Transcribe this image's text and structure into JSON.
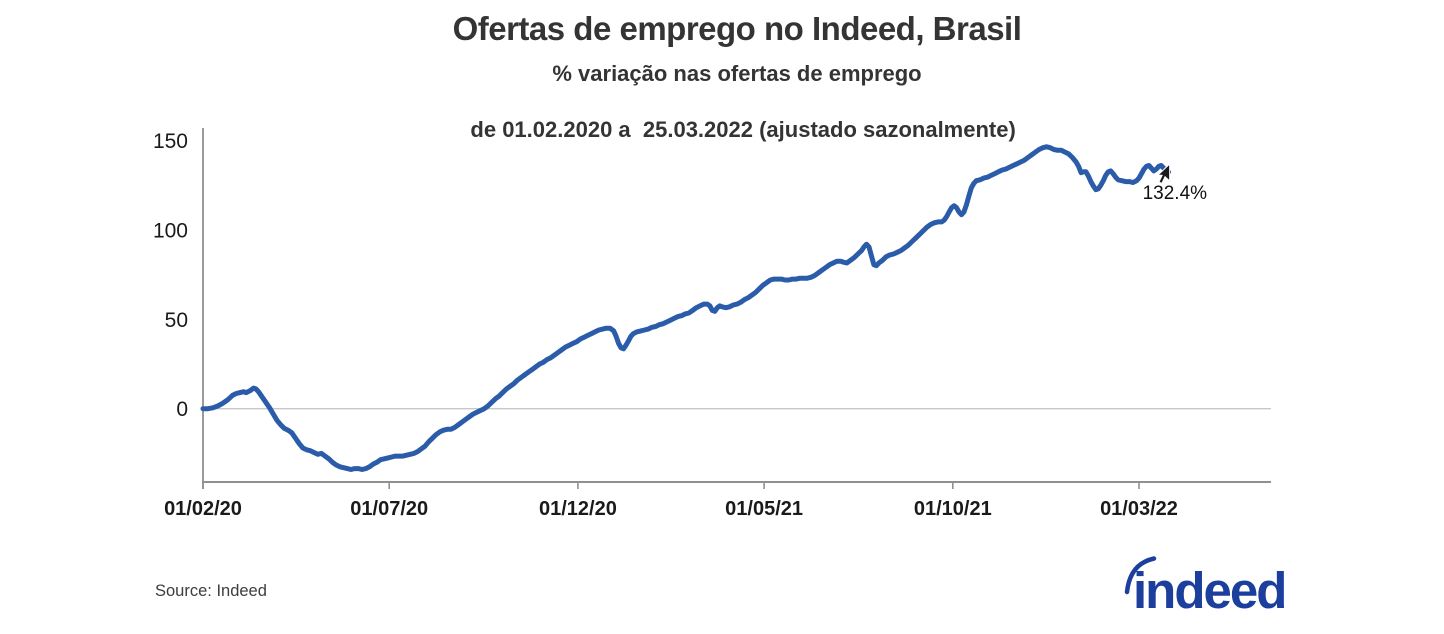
{
  "chart_data": {
    "type": "line",
    "title": "Ofertas de emprego no Indeed, Brasil",
    "subtitle_line1": "% variação nas ofertas de emprego",
    "subtitle_line2": "de 01.02.2020 a  25.03.2022 (ajustado sazonalmente)",
    "xlabel": "",
    "ylabel": "% variação nas ofertas de emprego",
    "x_unit": "days since 01/02/2020",
    "xlim": [
      0,
      866
    ],
    "ylim": [
      -41,
      157
    ],
    "x_ticks": [
      {
        "day": 0,
        "label": "01/02/20"
      },
      {
        "day": 151,
        "label": "01/07/20"
      },
      {
        "day": 304,
        "label": "01/12/20"
      },
      {
        "day": 455,
        "label": "01/05/21"
      },
      {
        "day": 608,
        "label": "01/10/21"
      },
      {
        "day": 759,
        "label": "01/03/22"
      }
    ],
    "y_ticks": [
      0,
      50,
      100,
      150
    ],
    "gridlines": "zero-line-only",
    "legend": "none",
    "colors": {
      "line": "#2b5ca9",
      "axis": "#909090",
      "gridline": "#c8c8c8",
      "text": "#1a1a1a"
    },
    "date_range": {
      "start": "01.02.2020",
      "end": "25.03.2022"
    },
    "annotation": {
      "label": "132.4%",
      "day": 783,
      "value": 132.4
    },
    "series": [
      {
        "name": "% variação nas ofertas de emprego (ajustado sazonalmente)",
        "color": "#2b5ca9",
        "points": [
          [
            0,
            0
          ],
          [
            4,
            0
          ],
          [
            8,
            0.5
          ],
          [
            12,
            1.5
          ],
          [
            16,
            3
          ],
          [
            20,
            5
          ],
          [
            24,
            7.5
          ],
          [
            27,
            8.5
          ],
          [
            30,
            9
          ],
          [
            33,
            9.5
          ],
          [
            35,
            9
          ],
          [
            38,
            10
          ],
          [
            41,
            11.5
          ],
          [
            43,
            11
          ],
          [
            45,
            9.5
          ],
          [
            48,
            6.5
          ],
          [
            51,
            3.5
          ],
          [
            54,
            0.5
          ],
          [
            57,
            -3
          ],
          [
            60,
            -6.5
          ],
          [
            63,
            -9
          ],
          [
            66,
            -11
          ],
          [
            69,
            -12
          ],
          [
            72,
            -13.5
          ],
          [
            75,
            -16.5
          ],
          [
            78,
            -19.5
          ],
          [
            81,
            -22
          ],
          [
            84,
            -23
          ],
          [
            87,
            -23.5
          ],
          [
            90,
            -24.5
          ],
          [
            93,
            -25.5
          ],
          [
            96,
            -25
          ],
          [
            99,
            -26.5
          ],
          [
            102,
            -28
          ],
          [
            105,
            -30
          ],
          [
            108,
            -31.5
          ],
          [
            111,
            -32.5
          ],
          [
            114,
            -33
          ],
          [
            117,
            -33.5
          ],
          [
            120,
            -34
          ],
          [
            123,
            -33.5
          ],
          [
            126,
            -33.5
          ],
          [
            129,
            -34
          ],
          [
            132,
            -33.5
          ],
          [
            135,
            -32.5
          ],
          [
            138,
            -31
          ],
          [
            141,
            -30
          ],
          [
            144,
            -28.5
          ],
          [
            147,
            -28
          ],
          [
            150,
            -27.5
          ],
          [
            153,
            -27
          ],
          [
            156,
            -26.5
          ],
          [
            159,
            -26.5
          ],
          [
            162,
            -26.5
          ],
          [
            165,
            -26
          ],
          [
            168,
            -25.5
          ],
          [
            171,
            -25
          ],
          [
            174,
            -24
          ],
          [
            177,
            -22.5
          ],
          [
            180,
            -21
          ],
          [
            183,
            -18.5
          ],
          [
            186,
            -16.5
          ],
          [
            189,
            -14.5
          ],
          [
            192,
            -13
          ],
          [
            195,
            -12
          ],
          [
            198,
            -11.5
          ],
          [
            201,
            -11.5
          ],
          [
            204,
            -10.5
          ],
          [
            207,
            -9
          ],
          [
            210,
            -7.5
          ],
          [
            213,
            -6
          ],
          [
            216,
            -4.5
          ],
          [
            219,
            -3
          ],
          [
            222,
            -2
          ],
          [
            225,
            -1
          ],
          [
            228,
            0
          ],
          [
            231,
            1.5
          ],
          [
            234,
            3.5
          ],
          [
            237,
            5.5
          ],
          [
            240,
            7
          ],
          [
            243,
            9
          ],
          [
            246,
            11
          ],
          [
            249,
            12.5
          ],
          [
            252,
            14
          ],
          [
            255,
            16
          ],
          [
            258,
            17.5
          ],
          [
            261,
            19
          ],
          [
            264,
            20.5
          ],
          [
            267,
            22
          ],
          [
            270,
            23.5
          ],
          [
            273,
            25
          ],
          [
            276,
            26
          ],
          [
            279,
            27.5
          ],
          [
            282,
            28.5
          ],
          [
            285,
            30
          ],
          [
            288,
            31.5
          ],
          [
            291,
            33
          ],
          [
            294,
            34.5
          ],
          [
            297,
            35.5
          ],
          [
            300,
            36.5
          ],
          [
            303,
            37.5
          ],
          [
            306,
            39
          ],
          [
            309,
            40
          ],
          [
            312,
            41
          ],
          [
            315,
            42
          ],
          [
            318,
            43
          ],
          [
            321,
            44
          ],
          [
            324,
            44.5
          ],
          [
            327,
            45
          ],
          [
            330,
            45
          ],
          [
            333,
            43.5
          ],
          [
            335,
            40.5
          ],
          [
            337,
            36.5
          ],
          [
            339,
            34
          ],
          [
            341,
            33.5
          ],
          [
            343,
            35.5
          ],
          [
            345,
            38
          ],
          [
            347,
            40.5
          ],
          [
            349,
            42
          ],
          [
            352,
            43
          ],
          [
            355,
            43.5
          ],
          [
            358,
            44
          ],
          [
            361,
            44.5
          ],
          [
            364,
            45.5
          ],
          [
            367,
            46
          ],
          [
            370,
            47
          ],
          [
            373,
            47.5
          ],
          [
            376,
            48.5
          ],
          [
            379,
            49.5
          ],
          [
            382,
            50.5
          ],
          [
            385,
            51.5
          ],
          [
            388,
            52
          ],
          [
            391,
            53
          ],
          [
            394,
            53.5
          ],
          [
            397,
            55
          ],
          [
            400,
            56.5
          ],
          [
            403,
            57.5
          ],
          [
            406,
            58.5
          ],
          [
            409,
            58.5
          ],
          [
            411,
            57.5
          ],
          [
            413,
            55
          ],
          [
            415,
            54.5
          ],
          [
            417,
            56.5
          ],
          [
            419,
            57.5
          ],
          [
            421,
            57
          ],
          [
            424,
            56.5
          ],
          [
            427,
            57
          ],
          [
            430,
            58
          ],
          [
            433,
            58.5
          ],
          [
            436,
            59.5
          ],
          [
            439,
            61
          ],
          [
            442,
            62
          ],
          [
            445,
            63.5
          ],
          [
            448,
            65
          ],
          [
            451,
            67
          ],
          [
            454,
            69
          ],
          [
            457,
            70.5
          ],
          [
            460,
            72
          ],
          [
            463,
            72.5
          ],
          [
            466,
            72.5
          ],
          [
            469,
            72.5
          ],
          [
            472,
            72
          ],
          [
            475,
            72
          ],
          [
            478,
            72.5
          ],
          [
            481,
            72.5
          ],
          [
            484,
            73
          ],
          [
            487,
            73
          ],
          [
            490,
            73
          ],
          [
            493,
            73.5
          ],
          [
            496,
            74.5
          ],
          [
            499,
            76
          ],
          [
            502,
            77.5
          ],
          [
            505,
            79
          ],
          [
            508,
            80.5
          ],
          [
            511,
            81.5
          ],
          [
            514,
            82.5
          ],
          [
            517,
            82.5
          ],
          [
            519,
            82
          ],
          [
            522,
            81.5
          ],
          [
            525,
            83
          ],
          [
            528,
            84.5
          ],
          [
            531,
            86.5
          ],
          [
            534,
            88.5
          ],
          [
            536,
            90.5
          ],
          [
            538,
            92
          ],
          [
            540,
            90.5
          ],
          [
            542,
            85.5
          ],
          [
            544,
            80.5
          ],
          [
            546,
            80
          ],
          [
            548,
            81.5
          ],
          [
            551,
            83
          ],
          [
            554,
            85
          ],
          [
            557,
            86
          ],
          [
            560,
            86.5
          ],
          [
            563,
            87.5
          ],
          [
            566,
            88.5
          ],
          [
            569,
            90
          ],
          [
            572,
            91.5
          ],
          [
            575,
            93.5
          ],
          [
            578,
            95.5
          ],
          [
            581,
            97.5
          ],
          [
            584,
            99.5
          ],
          [
            587,
            101.5
          ],
          [
            590,
            103
          ],
          [
            593,
            104
          ],
          [
            596,
            104.5
          ],
          [
            599,
            104.5
          ],
          [
            601,
            105.5
          ],
          [
            603,
            107.5
          ],
          [
            605,
            110
          ],
          [
            607,
            112.5
          ],
          [
            609,
            113.5
          ],
          [
            611,
            112.5
          ],
          [
            613,
            110
          ],
          [
            615,
            108.5
          ],
          [
            617,
            110
          ],
          [
            619,
            114
          ],
          [
            621,
            119
          ],
          [
            623,
            123.5
          ],
          [
            625,
            126
          ],
          [
            627,
            127.5
          ],
          [
            630,
            128
          ],
          [
            633,
            129
          ],
          [
            636,
            129.5
          ],
          [
            639,
            130.5
          ],
          [
            642,
            131.5
          ],
          [
            645,
            132.5
          ],
          [
            648,
            133.5
          ],
          [
            651,
            134
          ],
          [
            654,
            135
          ],
          [
            657,
            136
          ],
          [
            660,
            137
          ],
          [
            663,
            138
          ],
          [
            666,
            139
          ],
          [
            669,
            140.5
          ],
          [
            672,
            142
          ],
          [
            675,
            143.5
          ],
          [
            678,
            145
          ],
          [
            681,
            146
          ],
          [
            684,
            146.5
          ],
          [
            687,
            146
          ],
          [
            690,
            145
          ],
          [
            693,
            144.5
          ],
          [
            696,
            144.5
          ],
          [
            699,
            143.5
          ],
          [
            702,
            142.5
          ],
          [
            705,
            140.5
          ],
          [
            708,
            138
          ],
          [
            710,
            135.5
          ],
          [
            712,
            132
          ],
          [
            714,
            132.5
          ],
          [
            716,
            132.5
          ],
          [
            718,
            130
          ],
          [
            720,
            127
          ],
          [
            722,
            124.5
          ],
          [
            724,
            122.5
          ],
          [
            726,
            123
          ],
          [
            728,
            125
          ],
          [
            730,
            127.5
          ],
          [
            732,
            130.5
          ],
          [
            734,
            132.5
          ],
          [
            736,
            133
          ],
          [
            738,
            131.5
          ],
          [
            740,
            129.5
          ],
          [
            742,
            128
          ],
          [
            745,
            127.5
          ],
          [
            748,
            127
          ],
          [
            751,
            127
          ],
          [
            754,
            126.5
          ],
          [
            757,
            127.5
          ],
          [
            759,
            129
          ],
          [
            761,
            131.5
          ],
          [
            763,
            134
          ],
          [
            765,
            135.5
          ],
          [
            767,
            136
          ],
          [
            769,
            134.5
          ],
          [
            771,
            133
          ],
          [
            773,
            134
          ],
          [
            775,
            135.5
          ],
          [
            777,
            136
          ],
          [
            779,
            134.5
          ],
          [
            781,
            133.5
          ],
          [
            783,
            132.4
          ]
        ]
      }
    ]
  },
  "footer": {
    "source": "Source: Indeed",
    "logo_text": "indeed",
    "logo_color": "#1c3f9e"
  }
}
